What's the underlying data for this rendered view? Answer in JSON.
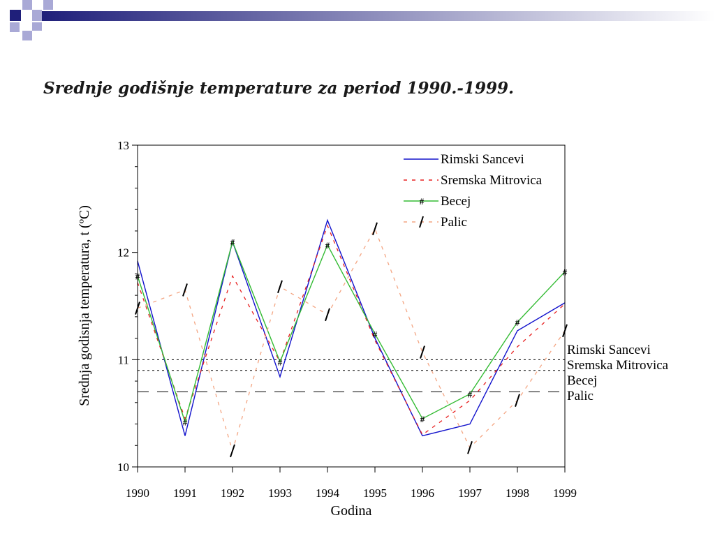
{
  "slide": {
    "title": "Srednje godišnje temperature za period 1990.-1999."
  },
  "colors": {
    "decor_dark": "#1f1f7a",
    "decor_light": "#a9a9d6"
  },
  "chart_data": {
    "type": "line",
    "title": "",
    "xlabel": "Godina",
    "ylabel": "Srednja godisnja temperatura, t (ºC)",
    "x": [
      1990,
      1991,
      1992,
      1993,
      1994,
      1995,
      1996,
      1997,
      1998,
      1999
    ],
    "xlim": [
      1990,
      1999
    ],
    "ylim": [
      10,
      13
    ],
    "yticks": [
      10,
      11,
      12,
      13
    ],
    "grid": false,
    "legend": {
      "placement": "top-right"
    },
    "series": [
      {
        "name": "Rimski Sancevi",
        "color": "#1111cc",
        "style": "solid",
        "marker": "",
        "values": [
          11.92,
          10.29,
          12.1,
          10.84,
          12.3,
          11.2,
          10.29,
          10.4,
          11.27,
          11.53
        ]
      },
      {
        "name": "Sremska Mitrovica",
        "color": "#e82020",
        "style": "dashed",
        "marker": "",
        "values": [
          11.72,
          10.45,
          11.78,
          10.98,
          12.25,
          11.18,
          10.3,
          10.62,
          11.12,
          11.52
        ]
      },
      {
        "name": "Becej",
        "color": "#33bb33",
        "style": "solid",
        "marker": "#",
        "values": [
          11.78,
          10.42,
          12.1,
          10.98,
          12.07,
          11.24,
          10.45,
          10.68,
          11.35,
          11.82
        ]
      },
      {
        "name": "Palic",
        "color": "#f4a582",
        "style": "dashed",
        "marker": "/",
        "values": [
          11.48,
          11.65,
          10.15,
          11.68,
          11.42,
          12.22,
          11.07,
          10.18,
          10.62,
          11.27
        ]
      }
    ],
    "reference_lines": [
      {
        "name": "Rimski Sancevi",
        "value": 11.0,
        "style": "dotted"
      },
      {
        "name": "Sremska Mitrovica",
        "value": 10.9,
        "style": "dotted"
      },
      {
        "name": "Becej",
        "value": 10.7,
        "style": "long-dash"
      },
      {
        "name": "Palic",
        "value": 10.7,
        "style": "long-dash"
      }
    ]
  }
}
